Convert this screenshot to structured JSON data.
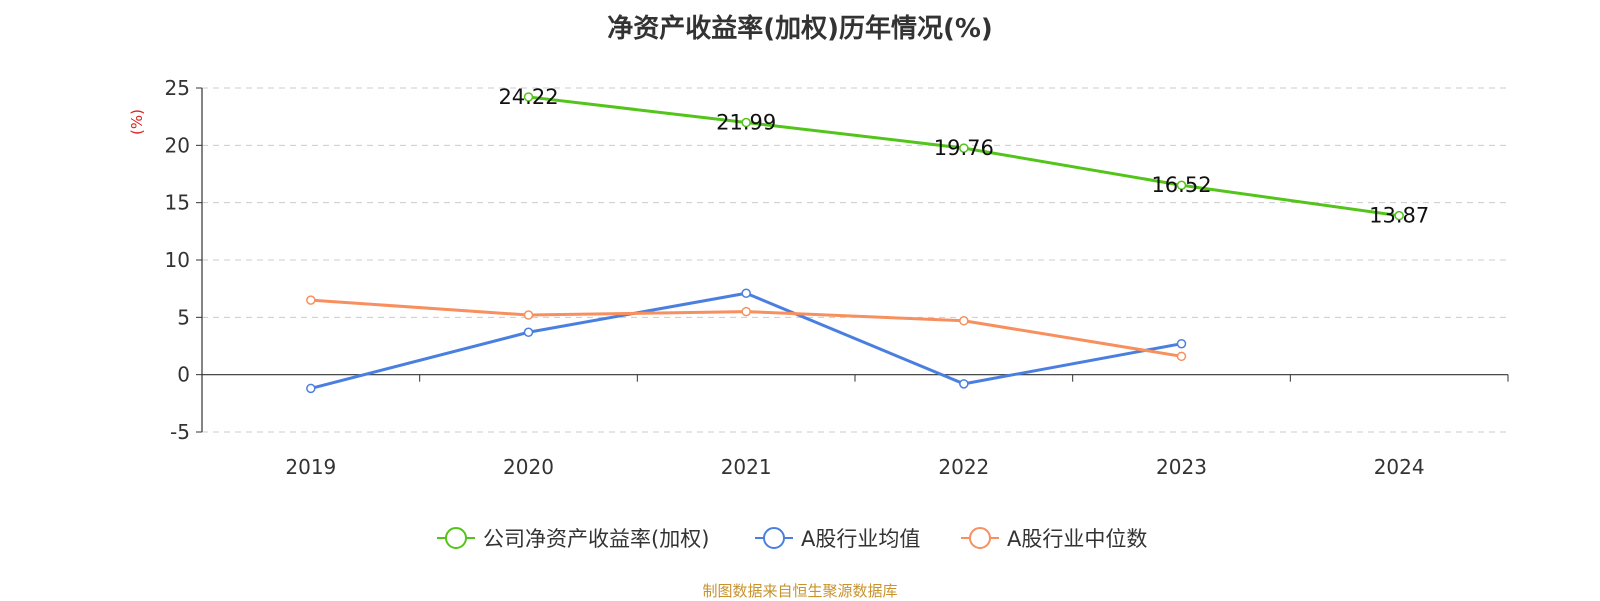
{
  "title": "净资产收益率(加权)历年情况(%)",
  "source": "制图数据来自恒生聚源数据库",
  "colors": {
    "source": "#c8932f",
    "unit": "#e02020",
    "axis": "#333333",
    "grid": "#cccccc",
    "tick_text": "#333333"
  },
  "chart_data": {
    "type": "line",
    "title": "净资产收益率(加权)历年情况(%)",
    "ylabel": "(%)",
    "xlabel": "",
    "ylim": [
      -5,
      25
    ],
    "yticks": [
      -5,
      0,
      5,
      10,
      15,
      20,
      25
    ],
    "grid": true,
    "legend_position": "bottom-center",
    "categories": [
      "2019",
      "2020",
      "2021",
      "2022",
      "2023",
      "2024"
    ],
    "series": [
      {
        "name": "公司净资产收益率(加权)",
        "color": "#52c41a",
        "values": [
          null,
          24.22,
          21.99,
          19.76,
          16.52,
          13.87
        ],
        "labels": [
          "",
          "24.22",
          "21.99",
          "19.76",
          "16.52",
          "13.87"
        ]
      },
      {
        "name": "A股行业均值",
        "color": "#4a7fe0",
        "values": [
          -1.2,
          3.7,
          7.1,
          -0.8,
          2.7,
          null
        ],
        "labels": []
      },
      {
        "name": "A股行业中位数",
        "color": "#f7905e",
        "values": [
          6.5,
          5.2,
          5.5,
          4.7,
          1.6,
          null
        ],
        "labels": []
      }
    ]
  }
}
